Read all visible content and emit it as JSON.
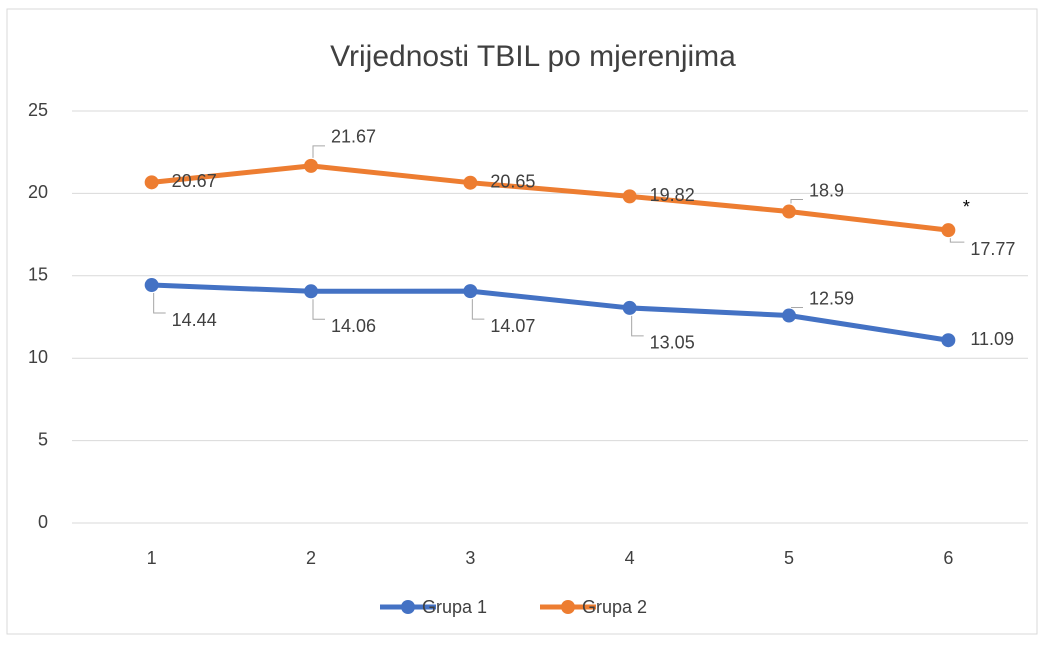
{
  "chart_data": {
    "type": "line",
    "title": "Vrijednosti TBIL po mjerenjima",
    "categories": [
      "1",
      "2",
      "3",
      "4",
      "5",
      "6"
    ],
    "series": [
      {
        "name": "Grupa 1",
        "color": "#4472c4",
        "values": [
          14.44,
          14.06,
          14.07,
          13.05,
          12.59,
          11.09
        ]
      },
      {
        "name": "Grupa 2",
        "color": "#ed7d31",
        "values": [
          20.67,
          21.67,
          20.65,
          19.82,
          18.9,
          17.77
        ]
      }
    ],
    "annotation": "*",
    "ylim": [
      0,
      25
    ],
    "yticks": [
      0,
      5,
      10,
      15,
      20,
      25
    ],
    "grid": true,
    "legend": "bottom"
  }
}
